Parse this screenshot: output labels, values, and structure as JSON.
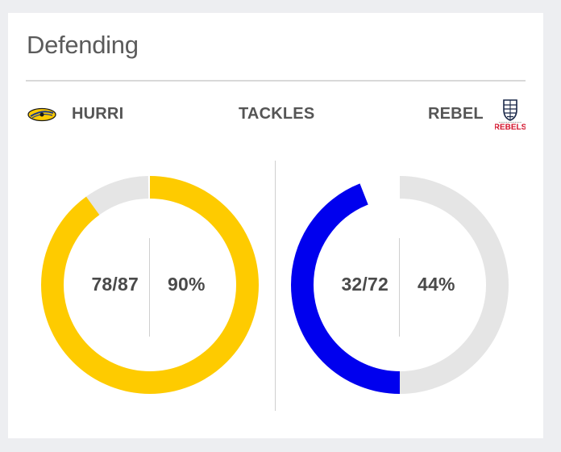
{
  "section": {
    "title": "Defending",
    "stat_label": "TACKLES"
  },
  "home": {
    "name": "HURRI",
    "logo_icon": "hurricanes-logo-icon",
    "ratio": "78/87",
    "percent_label": "90%",
    "fraction": 0.9,
    "color": "#fecb00"
  },
  "away": {
    "name": "REBEL",
    "logo_icon": "rebels-logo-icon",
    "logo_text": "REBELS",
    "ratio": "32/72",
    "percent_label": "44%",
    "fraction": 0.44,
    "color": "#0000ee"
  },
  "track_color": "#e5e5e5"
}
